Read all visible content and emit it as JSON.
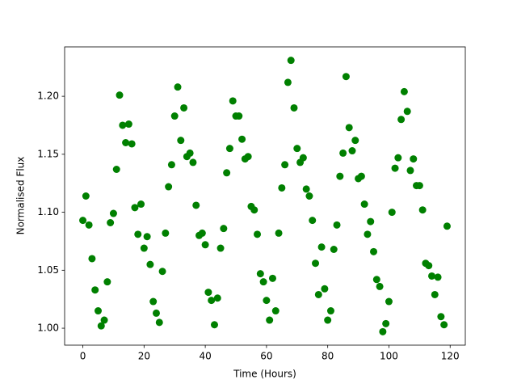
{
  "chart_data": {
    "type": "scatter",
    "xlabel": "Time (Hours)",
    "ylabel": "Normalised Flux",
    "x": [
      0,
      1,
      2,
      3,
      4,
      5,
      6,
      7,
      8,
      9,
      10,
      11,
      12,
      13,
      14,
      15,
      16,
      17,
      18,
      19,
      20,
      21,
      22,
      23,
      24,
      25,
      26,
      27,
      28,
      29,
      30,
      31,
      32,
      33,
      34,
      35,
      36,
      37,
      38,
      39,
      40,
      41,
      42,
      43,
      44,
      45,
      46,
      47,
      48,
      49,
      50,
      51,
      52,
      53,
      54,
      55,
      56,
      57,
      58,
      59,
      60,
      61,
      62,
      63,
      64,
      65,
      66,
      67,
      68,
      69,
      70,
      71,
      72,
      73,
      74,
      75,
      76,
      77,
      78,
      79,
      80,
      81,
      82,
      83,
      84,
      85,
      86,
      87,
      88,
      89,
      90,
      91,
      92,
      93,
      94,
      95,
      96,
      97,
      98,
      99,
      100,
      101,
      102,
      103,
      104,
      105,
      106,
      107,
      108,
      109,
      110,
      111,
      112,
      113,
      114,
      115,
      116,
      117,
      118,
      119
    ],
    "values": [
      1.093,
      1.114,
      1.089,
      1.06,
      1.033,
      1.015,
      1.002,
      1.007,
      1.04,
      1.091,
      1.099,
      1.137,
      1.201,
      1.175,
      1.16,
      1.176,
      1.159,
      1.104,
      1.081,
      1.107,
      1.069,
      1.079,
      1.055,
      1.023,
      1.013,
      1.005,
      1.049,
      1.082,
      1.122,
      1.141,
      1.183,
      1.208,
      1.162,
      1.19,
      1.148,
      1.151,
      1.143,
      1.106,
      1.08,
      1.082,
      1.072,
      1.031,
      1.024,
      1.003,
      1.026,
      1.069,
      1.086,
      1.134,
      1.155,
      1.196,
      1.183,
      1.183,
      1.163,
      1.146,
      1.148,
      1.105,
      1.102,
      1.081,
      1.047,
      1.04,
      1.024,
      1.007,
      1.043,
      1.015,
      1.082,
      1.121,
      1.141,
      1.212,
      1.231,
      1.19,
      1.155,
      1.143,
      1.147,
      1.12,
      1.114,
      1.093,
      1.056,
      1.029,
      1.07,
      1.034,
      1.007,
      1.015,
      1.068,
      1.089,
      1.131,
      1.151,
      1.217,
      1.173,
      1.153,
      1.162,
      1.129,
      1.131,
      1.107,
      1.081,
      1.092,
      1.066,
      1.042,
      1.036,
      0.997,
      1.004,
      1.023,
      1.1,
      1.138,
      1.147,
      1.18,
      1.204,
      1.187,
      1.136,
      1.146,
      1.123,
      1.123,
      1.102,
      1.056,
      1.054,
      1.045,
      1.029,
      1.044,
      1.01,
      1.003,
      1.088
    ],
    "color": "#008000",
    "xlim": [
      -5.95,
      124.95
    ],
    "xticks": [
      0,
      20,
      40,
      60,
      80,
      100,
      120
    ],
    "ylim": [
      0.9854,
      1.2426
    ],
    "yticks": [
      {
        "value": 1.0,
        "label": "1.00"
      },
      {
        "value": 1.05,
        "label": "1.05"
      },
      {
        "value": 1.1,
        "label": "1.10"
      },
      {
        "value": 1.15,
        "label": "1.15"
      },
      {
        "value": 1.2,
        "label": "1.20"
      }
    ]
  }
}
